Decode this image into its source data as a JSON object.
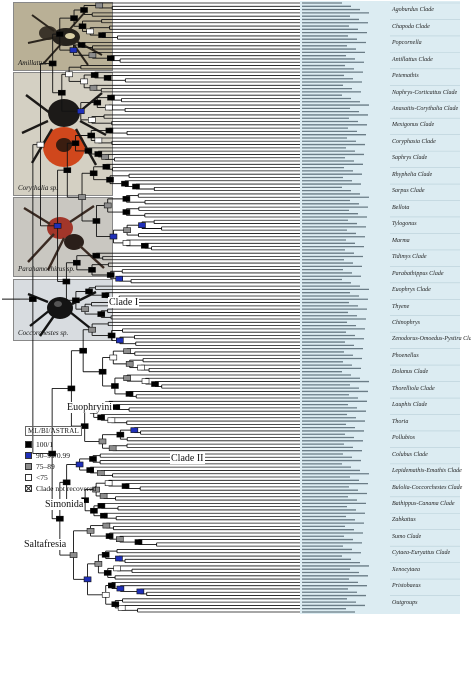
{
  "photos": [
    {
      "caption": "Amillattus sp.",
      "colors": {
        "bg": "#b9b096",
        "body": "#26221c",
        "accent": "#d9cfa6"
      }
    },
    {
      "caption": "Corythalia sp.",
      "colors": {
        "bg": "#d4d0c3",
        "body": "#1c1a18",
        "accent": "#d0471c"
      }
    },
    {
      "caption": "Parahamochirus sp.",
      "colors": {
        "bg": "#c9c7c1",
        "body": "#2a1f1a",
        "accent": "#a2362a"
      }
    },
    {
      "caption": "Coccorchestes sp.",
      "colors": {
        "bg": "#d8dce0",
        "body": "#141414",
        "accent": "#555555"
      }
    }
  ],
  "node_labels": {
    "clade1": "Clade I",
    "clade2": "Clade II",
    "euophryini": "Euophryini",
    "simonida": "Simonida",
    "saltafresia": "Saltafresia"
  },
  "clade_labels": [
    "Agoburdus Clade",
    "Chapoda Clade",
    "Popcornella",
    "Antillattus Clade",
    "Petemathis",
    "Naphrys-Corticattus Clade",
    "Anasaitis-Corythalia Clade",
    "Mexigonus Clade",
    "Coryphasia Clade",
    "Saphrys Clade",
    "Rhyphelia Clade",
    "Sarpus Clade",
    "Bellota",
    "Tylogonus",
    "Marma",
    "Tidimys Clade",
    "Parabathippus Clade",
    "Euophrys Clade",
    "Thyene",
    "Chinophrys",
    "Zenodorus-Omoedus-Pystira Clade",
    "Phoenellus",
    "Dolanus Clade",
    "Thorelliola Clade",
    "Lauphis Clade",
    "Thoria",
    "Pollubios",
    "Colubus Clade",
    "Lepidemathis-Emathis Clade",
    "Bulolia-Coccorchestes Clade",
    "Bathippus-Canama Clade",
    "Zabkattus",
    "Sumo Clade",
    "Cytaea-Euryattus Clade",
    "Xenocytaea",
    "Pristobaeus",
    "Outgroups"
  ],
  "legend": {
    "header": "ML/BI/ASTRAL",
    "items": [
      {
        "label": "100/1",
        "color": "#000000"
      },
      {
        "label": "90–99/0.99",
        "color": "#1f2fb8"
      },
      {
        "label": "75–89",
        "color": "#8d8d8d"
      },
      {
        "label": "<75",
        "color": "#ffffff"
      },
      {
        "label": "Clade not recovered",
        "color": "#ffffff"
      }
    ]
  },
  "tip_color": "#dcecf2"
}
